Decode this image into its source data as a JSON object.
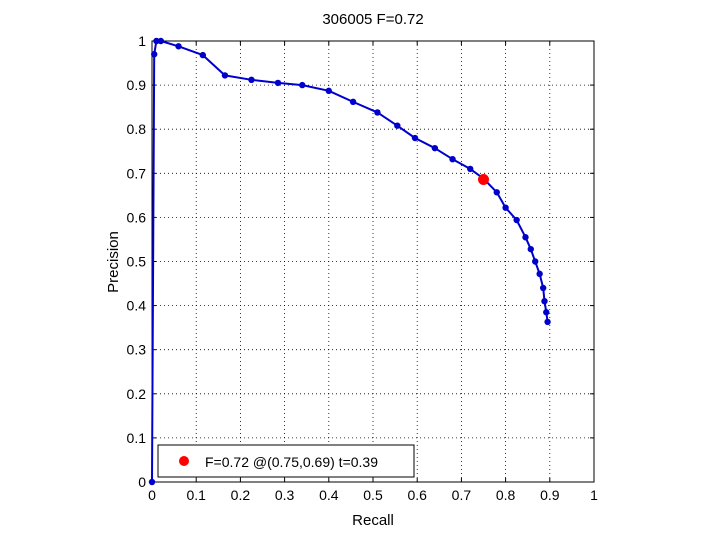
{
  "chart_data": {
    "type": "line",
    "title": "306005 F=0.72",
    "xlabel": "Recall",
    "ylabel": "Precision",
    "xlim": [
      0,
      1
    ],
    "ylim": [
      0,
      1
    ],
    "xticks": [
      "0",
      "0.1",
      "0.2",
      "0.3",
      "0.4",
      "0.5",
      "0.6",
      "0.7",
      "0.8",
      "0.9",
      "1"
    ],
    "yticks": [
      "0",
      "0.1",
      "0.2",
      "0.3",
      "0.4",
      "0.5",
      "0.6",
      "0.7",
      "0.8",
      "0.9",
      "1"
    ],
    "grid": true,
    "legend_position": "bottom-left",
    "series": [
      {
        "color": "#0000cc",
        "x": [
          0.0,
          0.005,
          0.01,
          0.02,
          0.06,
          0.115,
          0.165,
          0.225,
          0.285,
          0.34,
          0.4,
          0.455,
          0.51,
          0.555,
          0.595,
          0.64,
          0.68,
          0.72,
          0.75,
          0.78,
          0.8,
          0.825,
          0.845,
          0.857,
          0.867,
          0.877,
          0.885,
          0.888,
          0.892,
          0.895
        ],
        "y": [
          0.0,
          0.97,
          1.0,
          1.0,
          0.988,
          0.968,
          0.922,
          0.912,
          0.905,
          0.9,
          0.887,
          0.862,
          0.838,
          0.808,
          0.78,
          0.757,
          0.732,
          0.71,
          0.688,
          0.657,
          0.622,
          0.594,
          0.555,
          0.528,
          0.5,
          0.472,
          0.44,
          0.41,
          0.385,
          0.363
        ]
      },
      {
        "color": "#ff0000",
        "x": [
          0.75
        ],
        "y": [
          0.686
        ]
      }
    ],
    "legend": {
      "text": "F=0.72 @(0.75,0.69) t=0.39",
      "marker_color": "#ff0000"
    }
  }
}
